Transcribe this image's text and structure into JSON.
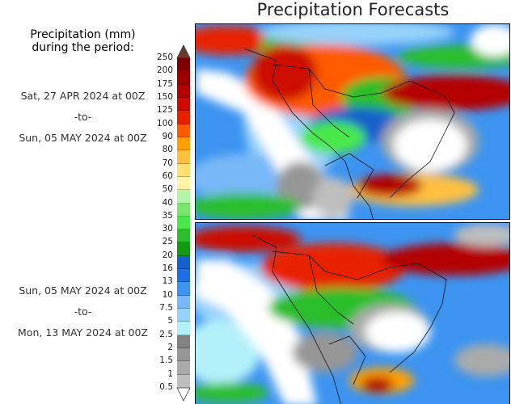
{
  "title": "Precipitation Forecasts",
  "legend": {
    "title_line1": "Precipitation (mm)",
    "title_line2": "during the period:",
    "levels": [
      "250",
      "200",
      "175",
      "150",
      "125",
      "100",
      "90",
      "80",
      "70",
      "60",
      "50",
      "40",
      "35",
      "30",
      "25",
      "20",
      "16",
      "13",
      "10",
      "7.5",
      "5",
      "2.5",
      "2",
      "1.5",
      "1",
      "0.5"
    ],
    "colors": [
      "#7d0000",
      "#9c0000",
      "#b40000",
      "#cc0a00",
      "#e82000",
      "#ff5a00",
      "#ffa000",
      "#ffc040",
      "#ffe070",
      "#fff5a5",
      "#b4f5a8",
      "#78e66c",
      "#4ae84a",
      "#2cbe2c",
      "#129a12",
      "#1460cc",
      "#1e6ee6",
      "#3c94f0",
      "#78b8f8",
      "#96d2fa",
      "#b4f0fa",
      "#828282",
      "#969696",
      "#aaaaaa",
      "#bebebe"
    ],
    "over_color": "#6b3a2e",
    "under_color": "#ffffff"
  },
  "periods": [
    {
      "start": "Sat, 27 APR 2024 at 00Z",
      "sep": "-to-",
      "end": "Sun, 05 MAY 2024 at 00Z"
    },
    {
      "start": "Sun, 05 MAY 2024 at 00Z",
      "sep": "-to-",
      "end": "Mon, 13 MAY 2024 at 00Z"
    }
  ]
}
